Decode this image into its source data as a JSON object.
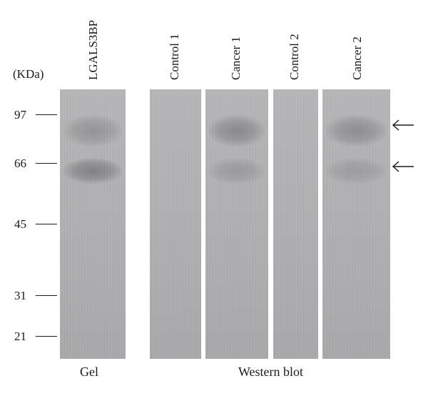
{
  "unit_label": "(KDa)",
  "lanes": [
    {
      "label": "LGALS3BP",
      "bands": [
        {
          "kda": "97",
          "intensity": 0.28
        },
        {
          "kda": "66",
          "intensity": 0.45
        }
      ]
    },
    {
      "label": "Control 1",
      "bands": []
    },
    {
      "label": "Cancer 1",
      "bands": [
        {
          "kda": "97",
          "intensity": 0.38
        },
        {
          "kda": "66",
          "intensity": 0.22
        }
      ]
    },
    {
      "label": "Control 2",
      "bands": []
    },
    {
      "label": "Cancer 2",
      "bands": [
        {
          "kda": "97",
          "intensity": 0.34
        },
        {
          "kda": "66",
          "intensity": 0.2
        }
      ]
    }
  ],
  "markers": [
    "97",
    "66",
    "45",
    "31",
    "21"
  ],
  "arrows": [
    "97",
    "66"
  ],
  "captions": {
    "gel": "Gel",
    "western_blot": "Western blot"
  }
}
